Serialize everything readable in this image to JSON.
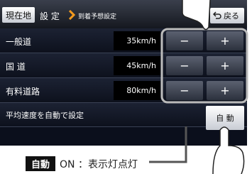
{
  "header": {
    "location": "現在地",
    "menu": "設 定",
    "page": "到着予想設定",
    "back": "戻る"
  },
  "rows": [
    {
      "label": "一般道",
      "value": "35km/h"
    },
    {
      "label": "国 道",
      "value": "45km/h"
    },
    {
      "label": "有料道路",
      "value": "80km/h"
    }
  ],
  "buttons": {
    "minus": "−",
    "plus": "+"
  },
  "auto": {
    "label": "平均速度を自動で設定",
    "button": "自 動"
  },
  "callout": {
    "badge": "自動",
    "text": "ON ：表示灯点灯"
  }
}
